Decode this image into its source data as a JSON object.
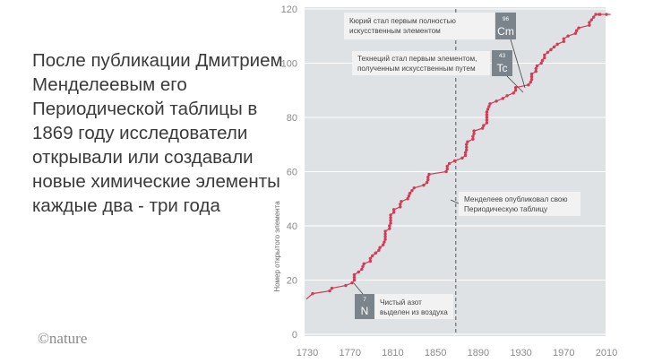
{
  "headline": "После публикации Дмитрием Менделеевым его Периодической таблицы в 1869 году исследователи открывали или создавали новые химические элементы каждые два - три года",
  "brand": "©nature",
  "colors": {
    "plot_bg": "#dfe2e5",
    "line": "#d23a55",
    "grid": "#ffffff",
    "badge": "#7b848a",
    "annotation_bg": "#f2f2f2"
  },
  "chart_data": {
    "type": "line",
    "title": "",
    "xlabel": "",
    "ylabel": "Номер открытого элемента",
    "xlim": [
      1730,
      2014
    ],
    "ylim": [
      0,
      120
    ],
    "x_ticks": [
      1730,
      1770,
      1810,
      1850,
      1890,
      1930,
      1970,
      2010
    ],
    "y_ticks": [
      0,
      20,
      40,
      60,
      80,
      100,
      120
    ],
    "grid": "horizontal",
    "series": [
      {
        "x": [
          1735,
          1751,
          1753,
          1766,
          1772,
          1774,
          1774,
          1774,
          1778,
          1781,
          1782,
          1783,
          1789,
          1789,
          1791,
          1794,
          1797,
          1798,
          1801,
          1802,
          1803,
          1803,
          1803,
          1803,
          1807,
          1807,
          1808,
          1808,
          1808,
          1808,
          1811,
          1811,
          1817,
          1817,
          1818,
          1824,
          1825,
          1826,
          1828,
          1830,
          1839,
          1842,
          1843,
          1843,
          1844,
          1860,
          1861,
          1861,
          1863,
          1868,
          1875,
          1878,
          1878,
          1879,
          1879,
          1879,
          1880,
          1885,
          1885,
          1886,
          1886,
          1894,
          1895,
          1898,
          1898,
          1898,
          1898,
          1898,
          1899,
          1900,
          1901,
          1907,
          1913,
          1917,
          1923,
          1925,
          1925,
          1937,
          1939,
          1940,
          1940,
          1940,
          1944,
          1944,
          1945,
          1949,
          1950,
          1952,
          1952,
          1955,
          1958,
          1961,
          1964,
          1970,
          1970,
          1974,
          1981,
          1982,
          1984,
          1994,
          1994,
          1996,
          1998,
          2000,
          2003,
          2004,
          2010,
          2014
        ],
        "y": [
          15,
          16,
          17,
          18,
          19,
          20,
          21,
          22,
          23,
          24,
          25,
          26,
          27,
          28,
          29,
          30,
          31,
          32,
          33,
          34,
          35,
          36,
          37,
          38,
          39,
          40,
          41,
          42,
          43,
          44,
          45,
          46,
          47,
          48,
          49,
          50,
          51,
          52,
          53,
          54,
          55,
          56,
          57,
          58,
          59,
          60,
          61,
          62,
          63,
          64,
          65,
          66,
          67,
          68,
          69,
          70,
          71,
          72,
          73,
          74,
          75,
          76,
          77,
          78,
          79,
          80,
          81,
          82,
          83,
          84,
          85,
          86,
          87,
          88,
          89,
          90,
          91,
          92,
          93,
          94,
          95,
          96,
          97,
          98,
          99,
          100,
          101,
          102,
          103,
          104,
          105,
          106,
          107,
          108,
          109,
          110,
          111,
          112,
          113,
          114,
          115,
          116,
          117,
          118,
          118,
          118,
          118,
          118
        ]
      }
    ],
    "reference_line": {
      "x": 1869,
      "style": "dashed"
    },
    "annotations": [
      {
        "lines": [
          "Кюрий стал первым полностью",
          "искусственным элементом"
        ],
        "badge": {
          "number": "96",
          "symbol": "Cm"
        },
        "point": {
          "x": 1944,
          "y": 96
        }
      },
      {
        "lines": [
          "Технеций стал первым элементом,",
          "полученным искусственным путем"
        ],
        "badge": {
          "number": "43",
          "symbol": "Tc"
        },
        "point": {
          "x": 1937,
          "y": 92
        }
      },
      {
        "lines": [
          "Менделеев опубликовал свою",
          "Периодическую таблицу"
        ],
        "point": {
          "x": 1869,
          "y": 51
        }
      },
      {
        "lines": [
          "Чистый азот",
          "выделен из воздуха"
        ],
        "badge": {
          "number": "7",
          "symbol": "N"
        },
        "point": {
          "x": 1772,
          "y": 20
        }
      }
    ]
  }
}
